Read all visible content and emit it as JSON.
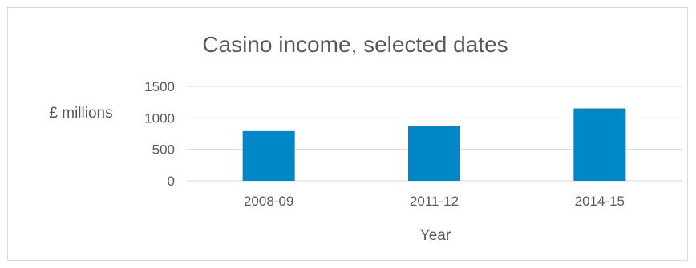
{
  "chart_data": {
    "type": "bar",
    "title": "Casino income, selected dates",
    "xlabel": "Year",
    "ylabel": "£ millions",
    "categories": [
      "2008-09",
      "2011-12",
      "2014-15"
    ],
    "values": [
      790,
      870,
      1150
    ],
    "ylim": [
      0,
      1500
    ],
    "yticks": [
      0,
      500,
      1000,
      1500
    ],
    "grid": true,
    "legend": "none",
    "bar_color": "#0087c8"
  }
}
